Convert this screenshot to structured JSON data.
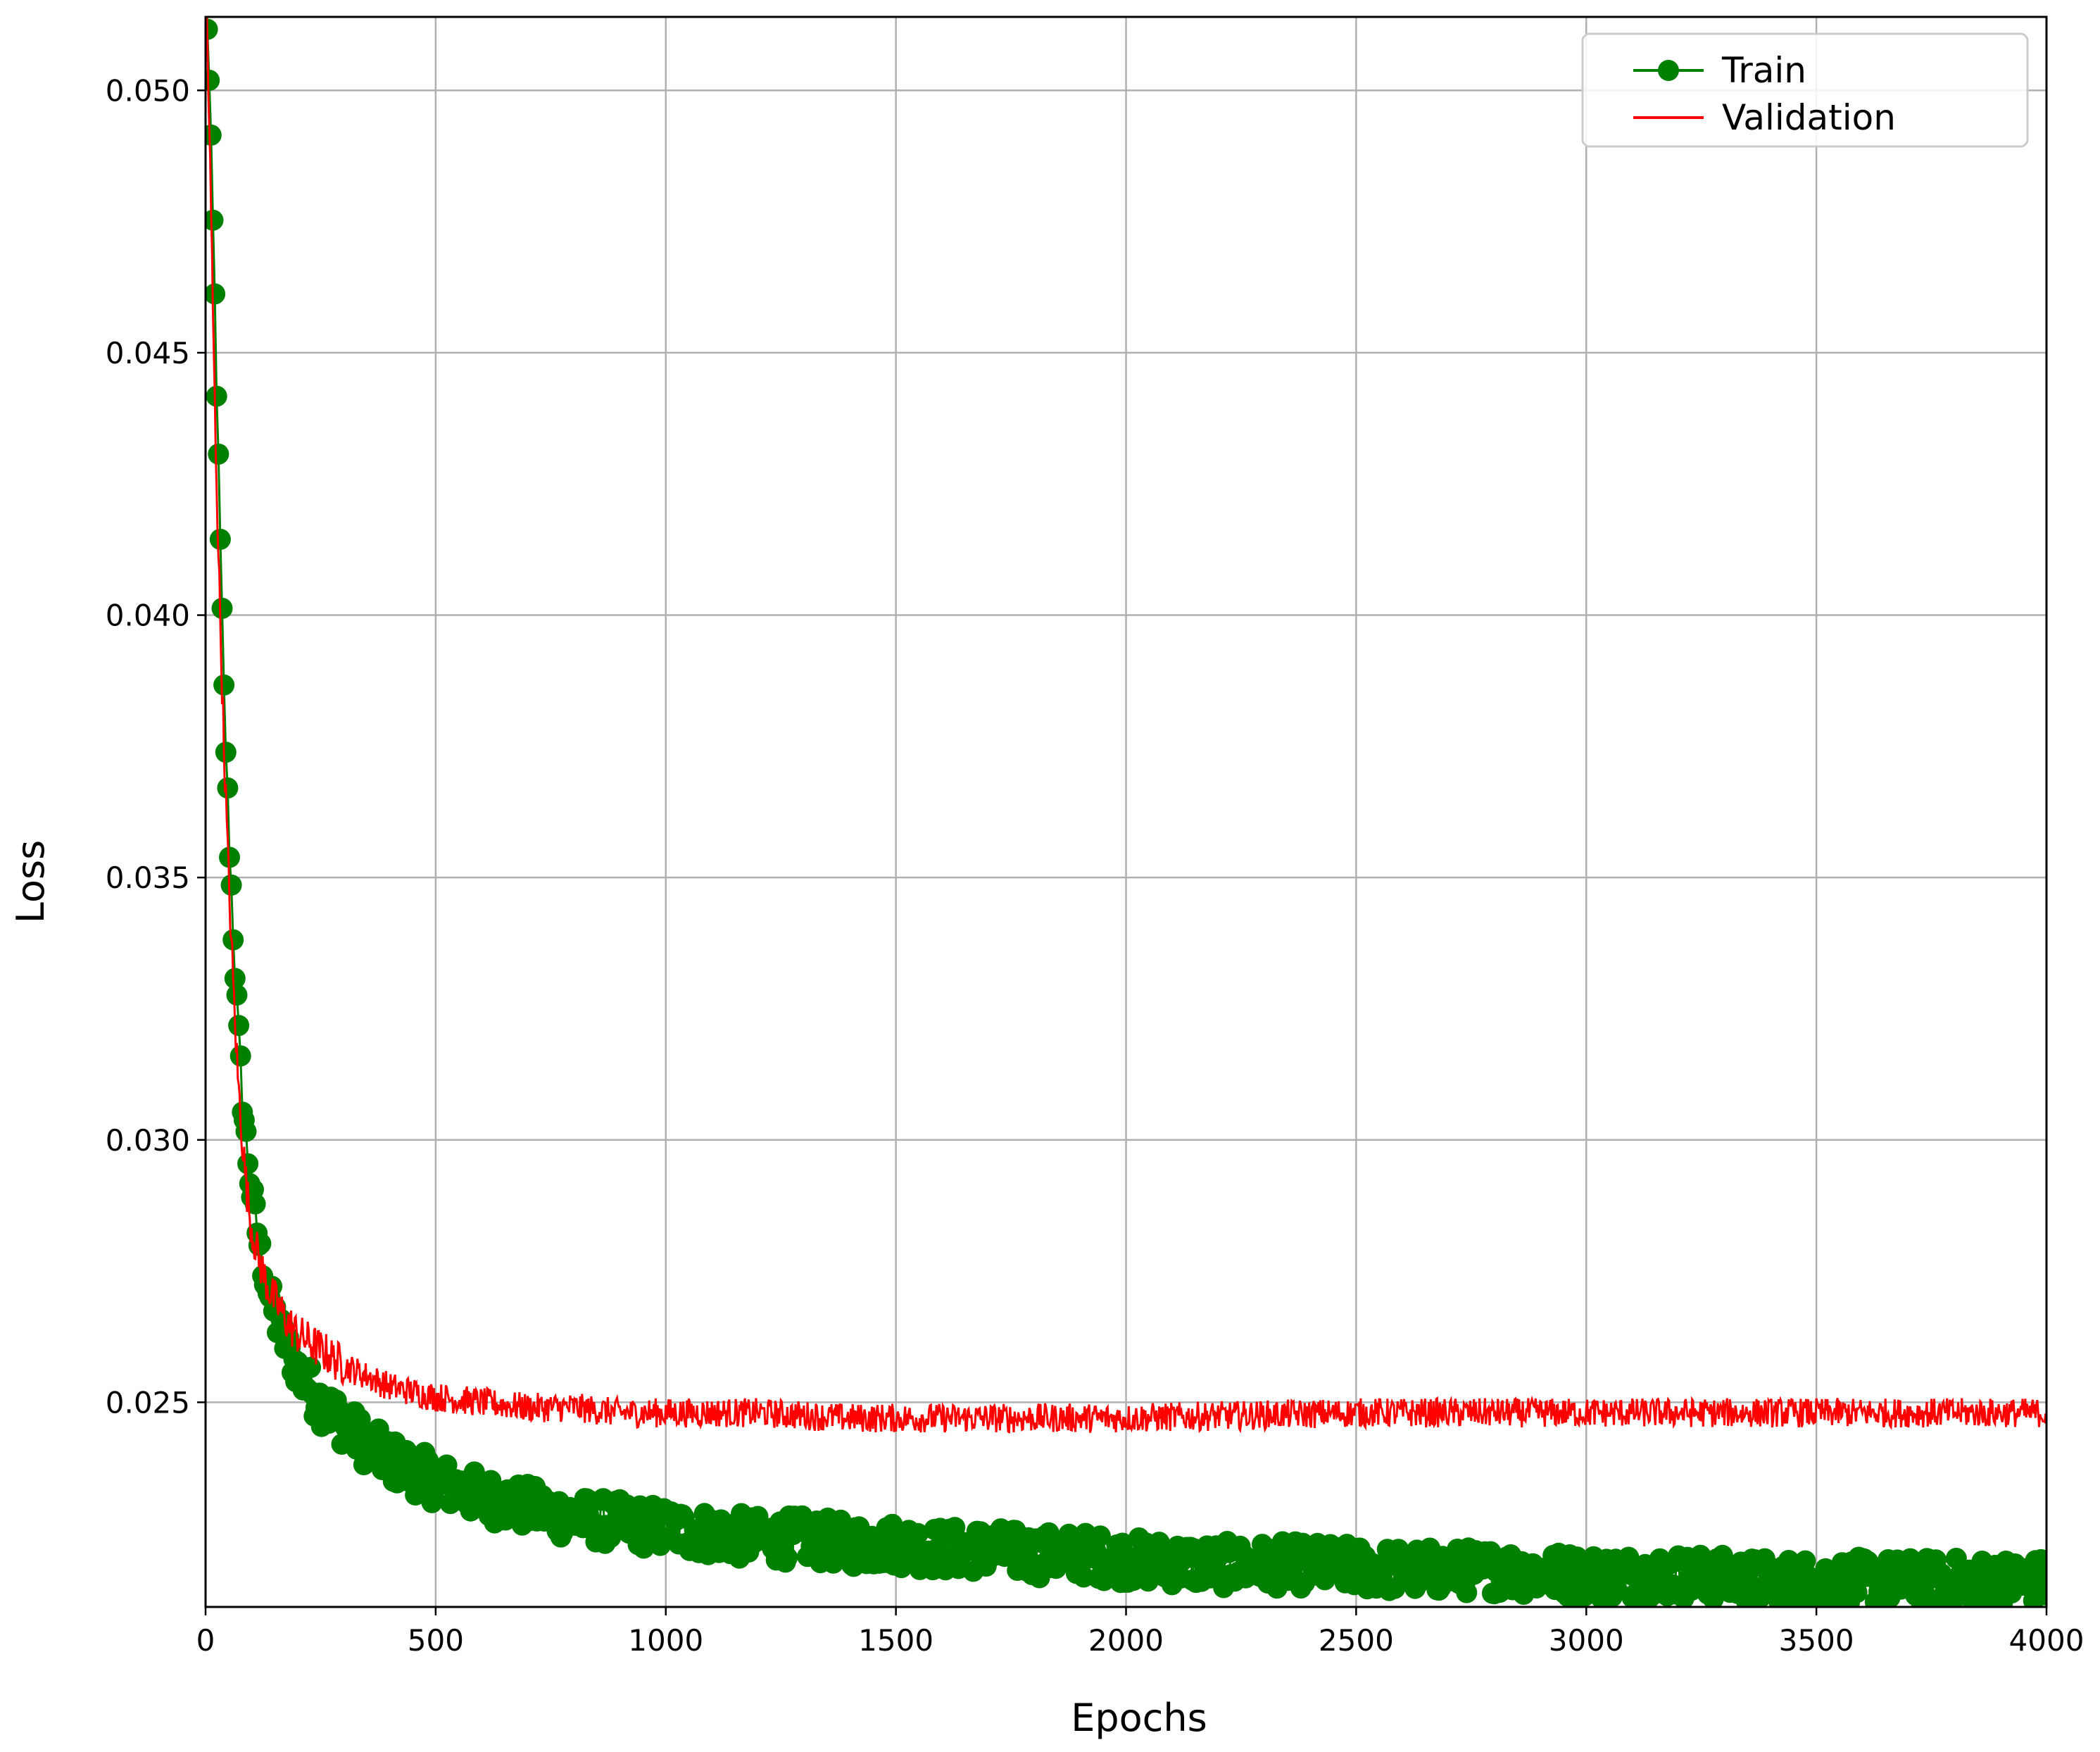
{
  "chart_data": {
    "type": "line",
    "title": "",
    "xlabel": "Epochs",
    "ylabel": "Loss",
    "xlim": [
      0,
      4000
    ],
    "ylim": [
      0.0211,
      0.0514
    ],
    "xticks": [
      0,
      500,
      1000,
      1500,
      2000,
      2500,
      3000,
      3500,
      4000
    ],
    "xtick_labels": [
      "0",
      "500",
      "1000",
      "1500",
      "2000",
      "2500",
      "3000",
      "3500",
      "4000"
    ],
    "yticks": [
      0.025,
      0.03,
      0.035,
      0.04,
      0.045,
      0.05
    ],
    "ytick_labels": [
      "0.025",
      "0.030",
      "0.035",
      "0.040",
      "0.045",
      "0.050"
    ],
    "grid": true,
    "legend_position": "top-right",
    "series": [
      {
        "name": "Train",
        "color": "#008000",
        "marker": "circle",
        "x": [
          0,
          10,
          20,
          30,
          40,
          50,
          60,
          70,
          80,
          90,
          100,
          120,
          140,
          160,
          180,
          200,
          250,
          300,
          350,
          400,
          450,
          500,
          600,
          700,
          800,
          900,
          1000,
          1100,
          1200,
          1300,
          1400,
          1500,
          1600,
          1700,
          1800,
          1900,
          2000,
          2200,
          2400,
          2600,
          2800,
          3000,
          3200,
          3400,
          3600,
          3800,
          4000
        ],
        "y": [
          0.0525,
          0.0495,
          0.046,
          0.042,
          0.0385,
          0.036,
          0.034,
          0.0322,
          0.0308,
          0.0298,
          0.029,
          0.0278,
          0.027,
          0.0264,
          0.026,
          0.0256,
          0.025,
          0.0246,
          0.0242,
          0.0239,
          0.0237,
          0.0235,
          0.0232,
          0.023,
          0.0228,
          0.0227,
          0.0226,
          0.0225,
          0.0224,
          0.0224,
          0.0223,
          0.0223,
          0.0222,
          0.0222,
          0.0221,
          0.0221,
          0.022,
          0.0219,
          0.0219,
          0.0218,
          0.0218,
          0.0217,
          0.0217,
          0.0216,
          0.0216,
          0.0216,
          0.0216
        ]
      },
      {
        "name": "Validation",
        "color": "#ff0000",
        "marker": "none",
        "x": [
          0,
          10,
          20,
          30,
          40,
          50,
          60,
          70,
          80,
          90,
          100,
          120,
          140,
          160,
          180,
          200,
          250,
          300,
          350,
          400,
          450,
          500,
          600,
          700,
          800,
          900,
          1000,
          1200,
          1400,
          1600,
          1800,
          2000,
          2500,
          3000,
          3500,
          4000
        ],
        "y": [
          0.0525,
          0.0485,
          0.044,
          0.0405,
          0.0375,
          0.035,
          0.033,
          0.0312,
          0.03,
          0.029,
          0.0283,
          0.0276,
          0.0271,
          0.0268,
          0.0265,
          0.0263,
          0.026,
          0.0257,
          0.0255,
          0.0253,
          0.0252,
          0.0251,
          0.025,
          0.0249,
          0.0249,
          0.0248,
          0.0248,
          0.0248,
          0.0247,
          0.0247,
          0.0247,
          0.0247,
          0.0248,
          0.0248,
          0.0248,
          0.0248
        ]
      }
    ]
  }
}
